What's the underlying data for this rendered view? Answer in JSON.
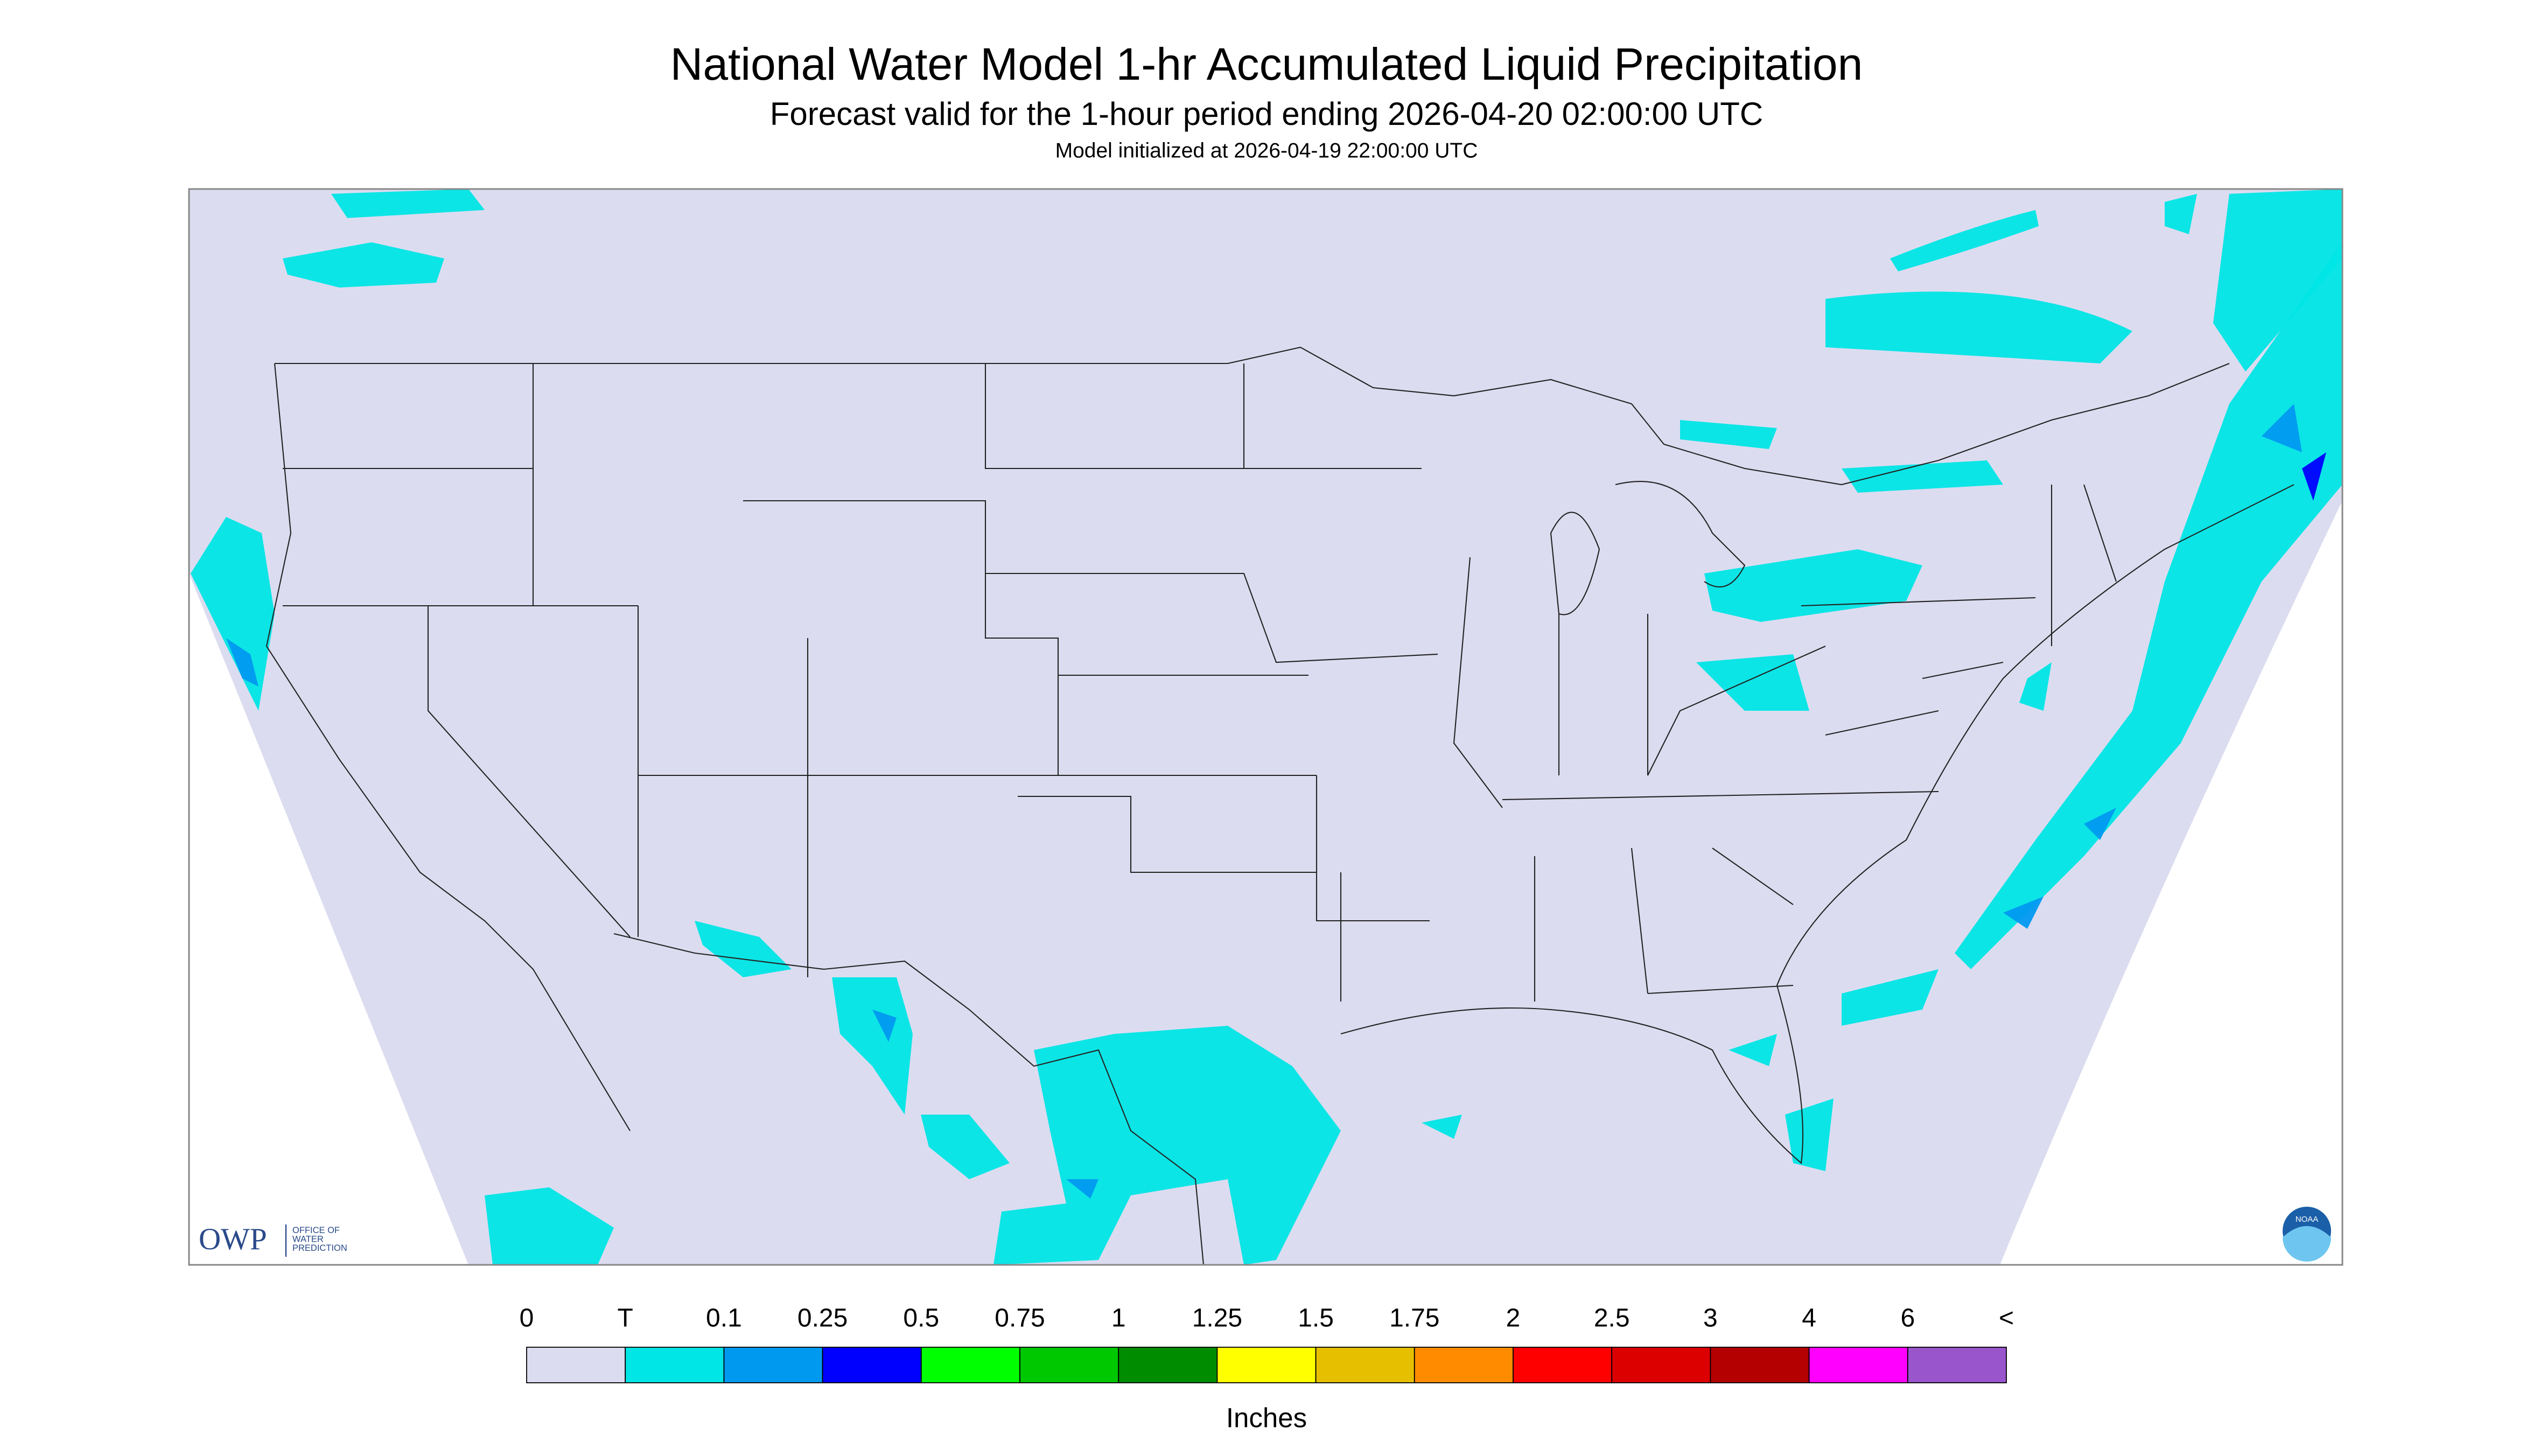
{
  "header": {
    "title": "National Water Model 1-hr Accumulated Liquid Precipitation",
    "subtitle": "Forecast valid for the 1-hour period ending 2026-04-20 02:00:00 UTC",
    "initialized": "Model initialized at 2026-04-19 22:00:00 UTC"
  },
  "legend": {
    "labels": [
      "0",
      "T",
      "0.1",
      "0.25",
      "0.5",
      "0.75",
      "1",
      "1.25",
      "1.5",
      "1.75",
      "2",
      "2.5",
      "3",
      "4",
      "6",
      "<"
    ],
    "colors": [
      "#dcdcf0",
      "#00e5e5",
      "#0099f0",
      "#0000ff",
      "#00ff00",
      "#00c800",
      "#008c00",
      "#ffff00",
      "#e6c000",
      "#ff8c00",
      "#ff0000",
      "#dc0000",
      "#b40000",
      "#ff00ff",
      "#9955cc"
    ],
    "unit": "Inches"
  },
  "logo": {
    "abbreviation": "OWP",
    "lines": [
      "OFFICE OF",
      "WATER",
      "PREDICTION"
    ]
  },
  "noaa_badge": "NOAA"
}
